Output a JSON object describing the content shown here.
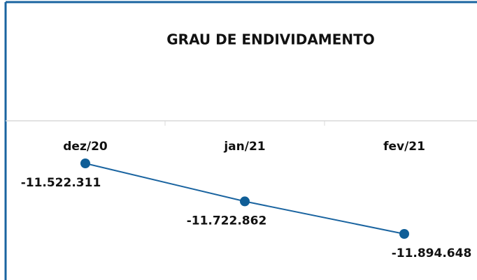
{
  "chart_data": {
    "type": "line",
    "title": "GRAU DE ENDIVIDAMENTO",
    "categories": [
      "dez/20",
      "jan/21",
      "fev/21"
    ],
    "series": [
      {
        "color": "#1a64a0",
        "values": [
          -11522311,
          -11722862,
          -11894648
        ],
        "value_labels": [
          "-11.522.311",
          "-11.722.862",
          "-11.894.648"
        ]
      }
    ]
  }
}
